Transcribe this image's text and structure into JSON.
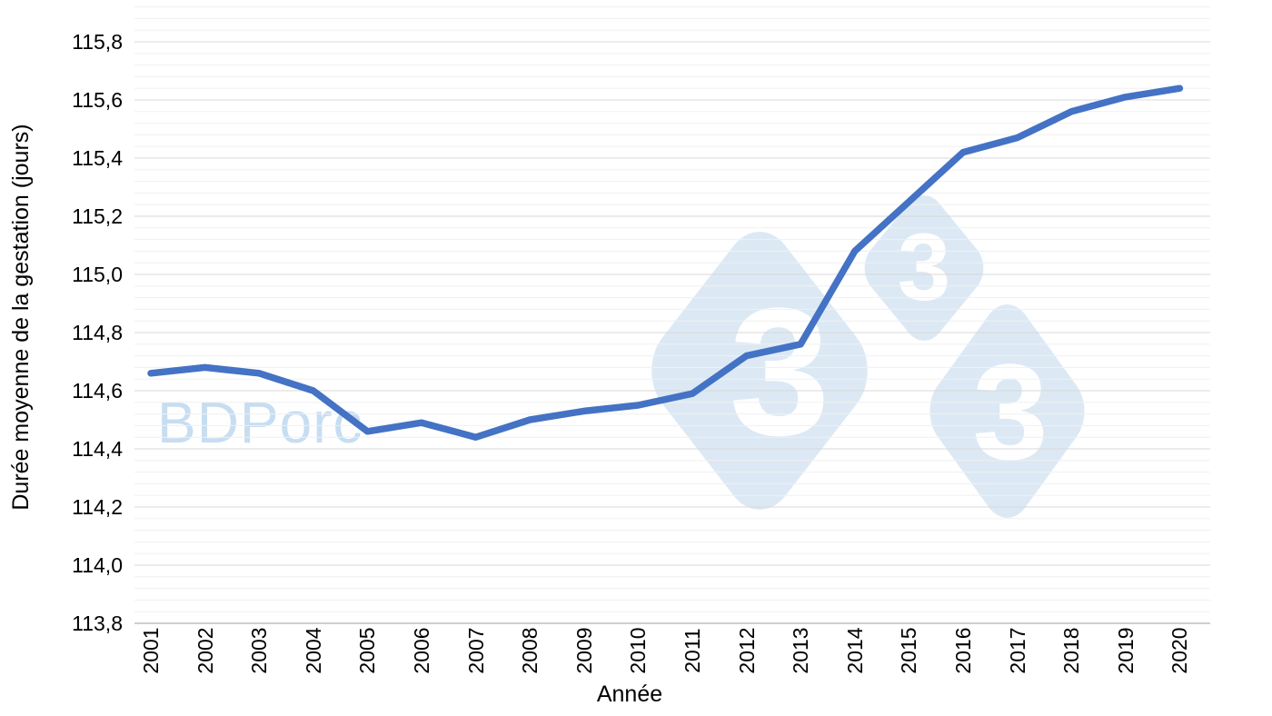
{
  "chart_data": {
    "type": "line",
    "title": "",
    "x": [
      2001,
      2002,
      2003,
      2004,
      2005,
      2006,
      2007,
      2008,
      2009,
      2010,
      2011,
      2012,
      2013,
      2014,
      2015,
      2016,
      2017,
      2018,
      2019,
      2020
    ],
    "x_tick_labels": [
      "2001",
      "2002",
      "2003",
      "2004",
      "2005",
      "2006",
      "2007",
      "2008",
      "2009",
      "2010",
      "2011",
      "2012",
      "2013",
      "2014",
      "2015",
      "2016",
      "2017",
      "2018",
      "2019",
      "2020"
    ],
    "series": [
      {
        "name": "Durée moyenne de la gestation (jours)",
        "values": [
          114.66,
          114.68,
          114.66,
          114.6,
          114.46,
          114.49,
          114.44,
          114.5,
          114.53,
          114.55,
          114.59,
          114.72,
          114.76,
          115.08,
          115.25,
          115.42,
          115.47,
          115.56,
          115.61,
          115.64
        ]
      }
    ],
    "xlabel": "Année",
    "ylabel": "Durée moyenne de la gestation (jours)",
    "ylim": [
      113.8,
      115.8
    ],
    "ytick_step": 0.2,
    "y_minor_step": 0.04,
    "y_tick_labels": [
      "113,8",
      "114,0",
      "114,2",
      "114,4",
      "114,6",
      "114,8",
      "115,0",
      "115,2",
      "115,4",
      "115,6",
      "115,8"
    ],
    "decimal_separator": ",",
    "grid": true,
    "legend_position": "none"
  },
  "colors": {
    "line": "#4472c4",
    "grid_major": "#d8d8d8",
    "grid_minor": "#f0f0f0",
    "axis_line": "#bfbfbf",
    "tick_label": "#000000",
    "watermark_diamond": "#dce9f5",
    "watermark_digit": "#ffffff",
    "watermark_text": "#c7ddf1"
  },
  "watermarks": {
    "text": "BDPorc",
    "diamond_digits": [
      "3",
      "3",
      "3"
    ]
  }
}
